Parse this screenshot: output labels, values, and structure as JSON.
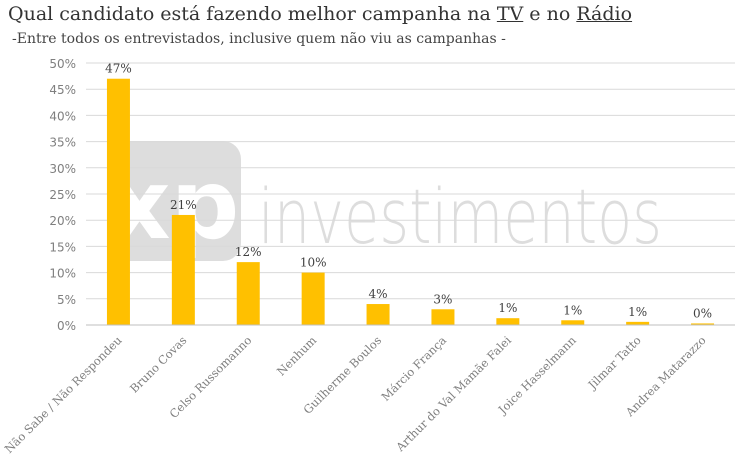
{
  "title": {
    "prefix": "Qual candidato está fazendo melhor campanha na ",
    "tv": "TV",
    "mid": " e no ",
    "radio": "Rádio"
  },
  "subtitle": "-Entre todos os entrevistados, inclusive quem não viu as campanhas -",
  "watermark": {
    "brand": "xp",
    "text": "investimentos"
  },
  "colors": {
    "bar": "#FFC000",
    "grid": "#d9d9d9",
    "axis_text": "#7f7f7f",
    "label_text": "#404040"
  },
  "chart_data": {
    "type": "bar",
    "categories": [
      "Não Sabe / Não Respondeu",
      "Bruno Covas",
      "Celso Russomanno",
      "Nenhum",
      "Guilherme Boulos",
      "Márcio França",
      "Arthur do Val Mamãe Falei",
      "Joice Hasselmann",
      "Jilmar Tatto",
      "Andrea Matarazzo"
    ],
    "values": [
      47,
      21,
      12,
      10,
      4,
      3,
      1.3,
      0.9,
      0.6,
      0.3
    ],
    "data_labels": [
      "47%",
      "21%",
      "12%",
      "10%",
      "4%",
      "3%",
      "1%",
      "1%",
      "1%",
      "0%"
    ],
    "ylim": [
      0,
      50
    ],
    "yticks": [
      0,
      5,
      10,
      15,
      20,
      25,
      30,
      35,
      40,
      45,
      50
    ],
    "ytick_labels": [
      "0%",
      "5%",
      "10%",
      "15%",
      "20%",
      "25%",
      "30%",
      "35%",
      "40%",
      "45%",
      "50%"
    ],
    "grid": true,
    "legend": "none"
  }
}
